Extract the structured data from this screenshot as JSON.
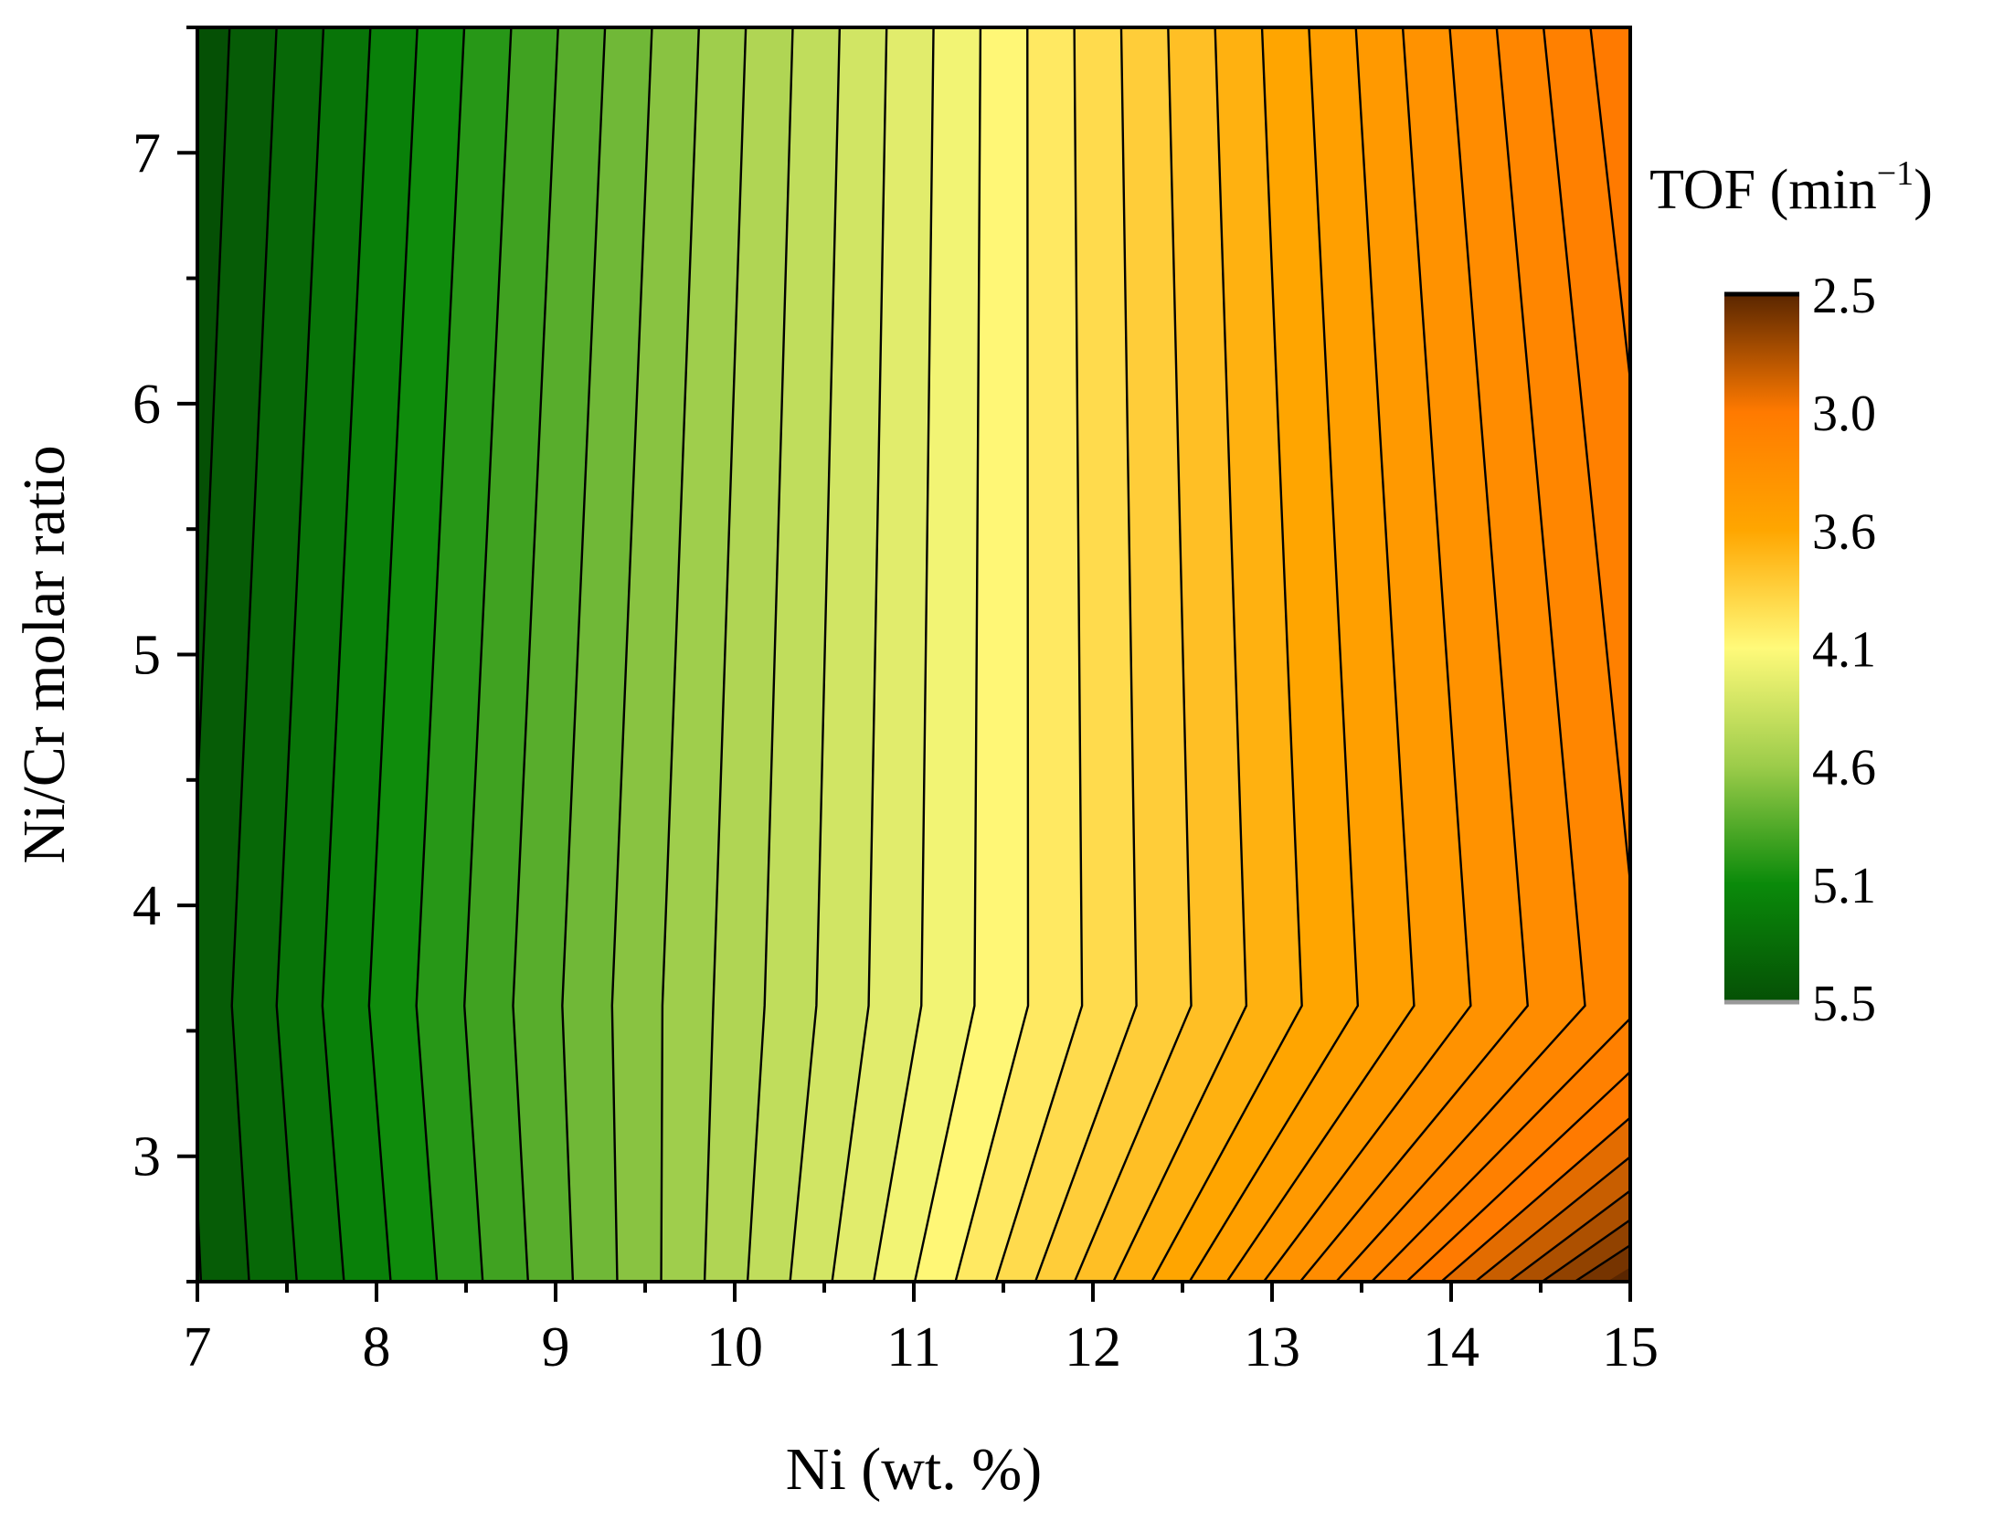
{
  "chart_data": {
    "type": "heatmap",
    "subtype": "filled-contour",
    "xlabel": "Ni (wt. %)",
    "ylabel": "Ni/Cr molar ratio",
    "xlim": [
      7,
      15
    ],
    "ylim": [
      2.5,
      7.5
    ],
    "x_ticks": [
      "7",
      "8",
      "9",
      "10",
      "11",
      "12",
      "13",
      "14",
      "15"
    ],
    "y_ticks": [
      "3",
      "4",
      "5",
      "6",
      "7"
    ],
    "z_levels": 35,
    "colorbar": {
      "title": "TOF (min",
      "title_sup": "−1",
      "title_close": ")",
      "labels": [
        "2.5",
        "3.0",
        "3.6",
        "4.1",
        "4.6",
        "5.1",
        "5.5"
      ],
      "values": [
        2.5,
        3.0,
        3.6,
        4.1,
        4.6,
        5.1,
        5.5
      ],
      "colors": [
        "#5a2600",
        "#ff7a00",
        "#ffa600",
        "#fffa7a",
        "#9ccc4a",
        "#0a8a0a",
        "#055005"
      ]
    },
    "grid": false
  }
}
